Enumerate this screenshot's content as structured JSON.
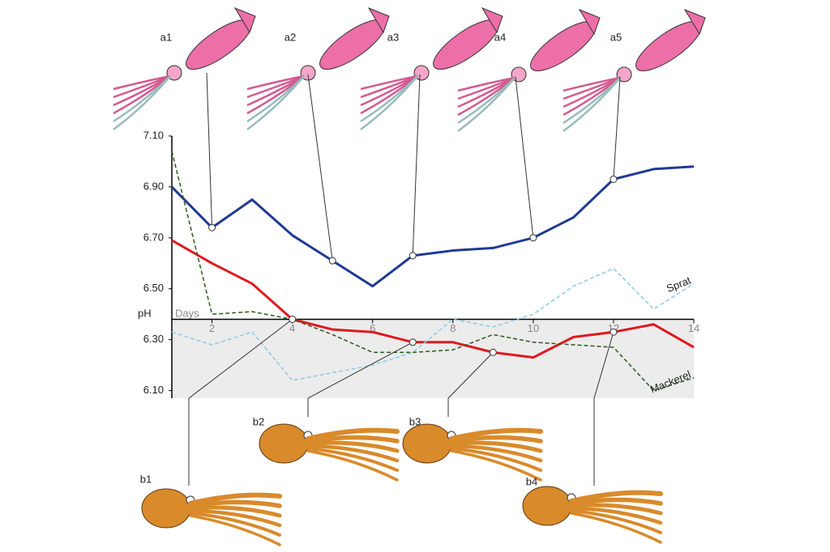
{
  "chart_data": {
    "type": "line",
    "y_label": "pH",
    "x_label": "Days",
    "x": [
      1,
      2,
      3,
      4,
      5,
      6,
      7,
      8,
      9,
      10,
      11,
      12,
      13,
      14
    ],
    "xlim": [
      1,
      14
    ],
    "xticks": [
      2,
      4,
      6,
      8,
      10,
      12,
      14
    ],
    "ylim": [
      6.07,
      7.1
    ],
    "yticks": [
      {
        "value": 6.1,
        "label": "6.10"
      },
      {
        "value": 6.3,
        "label": "6.30"
      },
      {
        "value": 6.5,
        "label": "6.50"
      },
      {
        "value": 6.7,
        "label": "6.70"
      },
      {
        "value": 6.9,
        "label": "6.90"
      },
      {
        "value": 7.1,
        "label": "7.10"
      }
    ],
    "x_axis_crossing": 6.38,
    "series": [
      {
        "color": "#1f3a93",
        "dashed": false,
        "values": [
          6.9,
          6.74,
          6.85,
          6.71,
          6.61,
          6.51,
          6.63,
          6.65,
          6.66,
          6.7,
          6.78,
          6.93,
          6.97,
          6.98
        ]
      },
      {
        "color": "#e0191e",
        "dashed": false,
        "values": [
          6.69,
          6.6,
          6.52,
          6.38,
          6.34,
          6.33,
          6.29,
          6.29,
          6.25,
          6.23,
          6.31,
          6.33,
          6.36,
          6.27
        ]
      },
      {
        "name": "Sprat",
        "color": "#8ecae6",
        "dashed": true,
        "values": [
          6.33,
          6.28,
          6.33,
          6.14,
          6.17,
          6.2,
          6.25,
          6.38,
          6.35,
          6.4,
          6.51,
          6.58,
          6.42,
          6.52
        ]
      },
      {
        "name": "Mackerel",
        "color": "#2d5a1e",
        "dashed": true,
        "values": [
          7.04,
          6.4,
          6.41,
          6.38,
          6.32,
          6.25,
          6.25,
          6.26,
          6.32,
          6.29,
          6.28,
          6.27,
          6.1,
          6.15
        ]
      }
    ],
    "annotations": [
      {
        "label": "a1",
        "series": 0,
        "point": 1
      },
      {
        "label": "a2",
        "series": 0,
        "point": 4
      },
      {
        "label": "a3",
        "series": 0,
        "point": 6
      },
      {
        "label": "a4",
        "series": 0,
        "point": 9
      },
      {
        "label": "a5",
        "series": 0,
        "point": 11
      },
      {
        "label": "b1",
        "series": 1,
        "point": 3
      },
      {
        "label": "b2",
        "series": 1,
        "point": 6
      },
      {
        "label": "b3",
        "series": 1,
        "point": 8
      },
      {
        "label": "b4",
        "series": 1,
        "point": 11
      }
    ]
  }
}
